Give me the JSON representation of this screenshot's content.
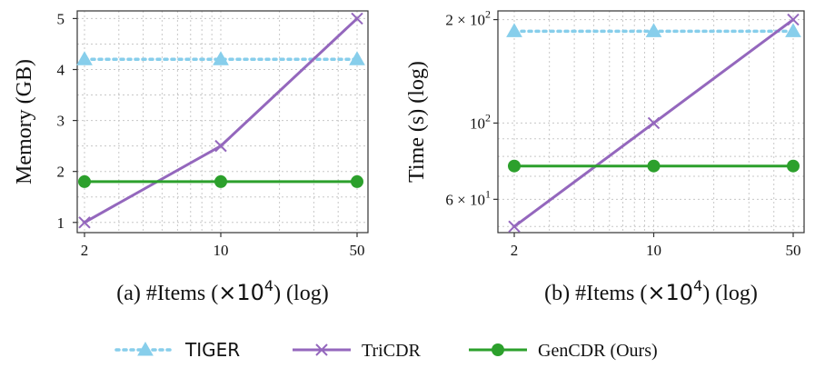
{
  "series_styles": [
    {
      "name": "TIGER",
      "color": "#87ceeb",
      "marker": "triangle",
      "dash": "dotted"
    },
    {
      "name": "TriCDR",
      "color": "#9467bd",
      "marker": "x",
      "dash": "solid"
    },
    {
      "name": "GenCDR (Ours)",
      "color": "#2ca02c",
      "marker": "circle",
      "dash": "solid"
    }
  ],
  "legend": {
    "labels": [
      "TIGER",
      "TriCDR",
      "GenCDR (Ours)"
    ]
  },
  "chart_data": [
    {
      "type": "line",
      "x": [
        2,
        10,
        50
      ],
      "xscale": "log",
      "xticks": [
        "2",
        "10",
        "50"
      ],
      "xlabel_prefix": "(a) #Items (",
      "xlabel_mult": "×10",
      "xlabel_exp": "4",
      "xlabel_suffix": ") (log)",
      "ylabel": "Memory (GB)",
      "yscale": "linear",
      "ylim": [
        0.8,
        5.15
      ],
      "yticks": [
        "1",
        "2",
        "3",
        "4",
        "5"
      ],
      "series": [
        {
          "name": "TIGER",
          "values": [
            4.2,
            4.2,
            4.2
          ]
        },
        {
          "name": "TriCDR",
          "values": [
            1.0,
            2.5,
            5.0
          ]
        },
        {
          "name": "GenCDR (Ours)",
          "values": [
            1.8,
            1.8,
            1.8
          ]
        }
      ]
    },
    {
      "type": "line",
      "x": [
        2,
        10,
        50
      ],
      "xscale": "log",
      "xticks": [
        "2",
        "10",
        "50"
      ],
      "xlabel_prefix": "(b) #Items (",
      "xlabel_mult": "×10",
      "xlabel_exp": "4",
      "xlabel_suffix": ") (log)",
      "ylabel": "Time (s) (log)",
      "yscale": "log",
      "ylim": [
        48,
        212
      ],
      "yticks": [
        {
          "value": 200,
          "base": "2 × 10",
          "exp": "2"
        },
        {
          "value": 100,
          "base": "10",
          "exp": "2"
        },
        {
          "value": 60,
          "base": "6 × 10",
          "exp": "1"
        }
      ],
      "series": [
        {
          "name": "TIGER",
          "values": [
            185,
            185,
            185
          ]
        },
        {
          "name": "TriCDR",
          "values": [
            50,
            100,
            200
          ]
        },
        {
          "name": "GenCDR (Ours)",
          "values": [
            75,
            75,
            75
          ]
        }
      ]
    }
  ]
}
